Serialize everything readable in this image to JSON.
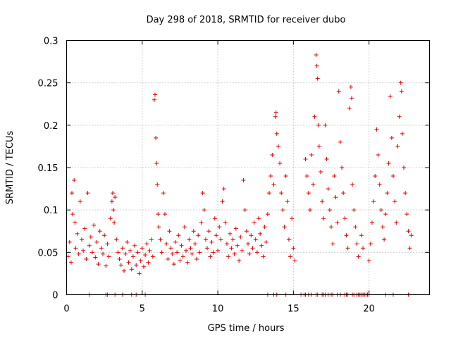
{
  "chart_data": {
    "type": "scatter",
    "title": "Day 298 of 2018, SRMTID for receiver dubo",
    "xlabel": "GPS time / hours",
    "ylabel": "SRMTID / TECUs",
    "xlim": [
      0,
      24
    ],
    "ylim": [
      0,
      0.3
    ],
    "xticks": [
      0,
      5,
      10,
      15,
      20
    ],
    "xtick_labels": [
      "0",
      "5",
      "10",
      "15",
      "20"
    ],
    "yticks": [
      0,
      0.05,
      0.1,
      0.15,
      0.2,
      0.25,
      0.3
    ],
    "ytick_labels": [
      "0",
      "0.05",
      "0.1",
      "0.15",
      "0.2",
      "0.25",
      "0.3"
    ],
    "grid": true,
    "marker": "+",
    "color": "#e00000",
    "series": [
      {
        "name": "SRMTID",
        "points": [
          [
            0.1,
            0.045
          ],
          [
            0.2,
            0.062
          ],
          [
            0.3,
            0.038
          ],
          [
            0.35,
            0.12
          ],
          [
            0.4,
            0.095
          ],
          [
            0.5,
            0.135
          ],
          [
            0.55,
            0.085
          ],
          [
            0.6,
            0.055
          ],
          [
            0.7,
            0.072
          ],
          [
            0.8,
            0.048
          ],
          [
            0.9,
            0.11
          ],
          [
            1.0,
            0.065
          ],
          [
            1.1,
            0.052
          ],
          [
            1.2,
            0.078
          ],
          [
            1.3,
            0.042
          ],
          [
            1.4,
            0.12
          ],
          [
            1.5,
            0.058
          ],
          [
            1.6,
            0.068
          ],
          [
            1.7,
            0.05
          ],
          [
            1.8,
            0.082
          ],
          [
            1.9,
            0.044
          ],
          [
            2.0,
            0.062
          ],
          [
            2.1,
            0.036
          ],
          [
            2.2,
            0.075
          ],
          [
            2.3,
            0.055
          ],
          [
            2.4,
            0.048
          ],
          [
            2.5,
            0.07
          ],
          [
            2.6,
            0.034
          ],
          [
            2.7,
            0.06
          ],
          [
            2.8,
            0.045
          ],
          [
            2.9,
            0.09
          ],
          [
            3.0,
            0.11
          ],
          [
            3.05,
            0.12
          ],
          [
            3.1,
            0.1
          ],
          [
            3.15,
            0.085
          ],
          [
            3.2,
            0.115
          ],
          [
            3.3,
            0.065
          ],
          [
            3.4,
            0.05
          ],
          [
            3.5,
            0.042
          ],
          [
            3.6,
            0.035
          ],
          [
            3.7,
            0.055
          ],
          [
            3.8,
            0.028
          ],
          [
            3.9,
            0.048
          ],
          [
            4.0,
            0.062
          ],
          [
            4.1,
            0.038
          ],
          [
            4.2,
            0.052
          ],
          [
            4.3,
            0.03
          ],
          [
            4.4,
            0.045
          ],
          [
            4.5,
            0.058
          ],
          [
            4.6,
            0.035
          ],
          [
            4.7,
            0.05
          ],
          [
            4.8,
            0.025
          ],
          [
            4.9,
            0.04
          ],
          [
            5.0,
            0.055
          ],
          [
            5.1,
            0.033
          ],
          [
            5.2,
            0.047
          ],
          [
            5.3,
            0.06
          ],
          [
            5.4,
            0.038
          ],
          [
            5.5,
            0.052
          ],
          [
            5.6,
            0.065
          ],
          [
            5.7,
            0.045
          ],
          [
            5.8,
            0.23
          ],
          [
            5.85,
            0.236
          ],
          [
            5.9,
            0.185
          ],
          [
            5.95,
            0.155
          ],
          [
            6.0,
            0.13
          ],
          [
            6.05,
            0.095
          ],
          [
            6.1,
            0.08
          ],
          [
            6.2,
            0.065
          ],
          [
            6.3,
            0.05
          ],
          [
            6.4,
            0.12
          ],
          [
            6.5,
            0.095
          ],
          [
            6.6,
            0.06
          ],
          [
            6.7,
            0.042
          ],
          [
            6.8,
            0.075
          ],
          [
            6.9,
            0.055
          ],
          [
            7.0,
            0.048
          ],
          [
            7.1,
            0.036
          ],
          [
            7.2,
            0.062
          ],
          [
            7.3,
            0.05
          ],
          [
            7.4,
            0.07
          ],
          [
            7.5,
            0.04
          ],
          [
            7.6,
            0.058
          ],
          [
            7.7,
            0.045
          ],
          [
            7.8,
            0.08
          ],
          [
            7.9,
            0.052
          ],
          [
            8.0,
            0.038
          ],
          [
            8.1,
            0.065
          ],
          [
            8.2,
            0.055
          ],
          [
            8.3,
            0.048
          ],
          [
            8.4,
            0.075
          ],
          [
            8.5,
            0.06
          ],
          [
            8.6,
            0.042
          ],
          [
            8.7,
            0.07
          ],
          [
            8.8,
            0.05
          ],
          [
            8.9,
            0.085
          ],
          [
            9.0,
            0.12
          ],
          [
            9.1,
            0.1
          ],
          [
            9.2,
            0.065
          ],
          [
            9.3,
            0.055
          ],
          [
            9.4,
            0.075
          ],
          [
            9.5,
            0.045
          ],
          [
            9.6,
            0.062
          ],
          [
            9.7,
            0.05
          ],
          [
            9.8,
            0.09
          ],
          [
            9.9,
            0.07
          ],
          [
            10.0,
            0.052
          ],
          [
            10.1,
            0.08
          ],
          [
            10.2,
            0.065
          ],
          [
            10.3,
            0.11
          ],
          [
            10.4,
            0.125
          ],
          [
            10.5,
            0.085
          ],
          [
            10.6,
            0.06
          ],
          [
            10.7,
            0.045
          ],
          [
            10.8,
            0.072
          ],
          [
            10.9,
            0.055
          ],
          [
            11.0,
            0.065
          ],
          [
            11.1,
            0.048
          ],
          [
            11.2,
            0.078
          ],
          [
            11.3,
            0.058
          ],
          [
            11.4,
            0.04
          ],
          [
            11.5,
            0.068
          ],
          [
            11.6,
            0.052
          ],
          [
            11.7,
            0.135
          ],
          [
            11.8,
            0.1
          ],
          [
            11.9,
            0.075
          ],
          [
            12.0,
            0.06
          ],
          [
            12.1,
            0.048
          ],
          [
            12.2,
            0.07
          ],
          [
            12.3,
            0.055
          ],
          [
            12.4,
            0.085
          ],
          [
            12.5,
            0.065
          ],
          [
            12.6,
            0.05
          ],
          [
            12.7,
            0.09
          ],
          [
            12.8,
            0.072
          ],
          [
            12.9,
            0.058
          ],
          [
            13.0,
            0.045
          ],
          [
            13.1,
            0.08
          ],
          [
            13.2,
            0.062
          ],
          [
            13.3,
            0.095
          ],
          [
            13.4,
            0.12
          ],
          [
            13.5,
            0.14
          ],
          [
            13.6,
            0.165
          ],
          [
            13.7,
            0.13
          ],
          [
            13.8,
            0.21
          ],
          [
            13.85,
            0.215
          ],
          [
            13.9,
            0.19
          ],
          [
            14.0,
            0.175
          ],
          [
            14.1,
            0.155
          ],
          [
            14.2,
            0.12
          ],
          [
            14.3,
            0.1
          ],
          [
            14.4,
            0.08
          ],
          [
            14.5,
            0.14
          ],
          [
            14.6,
            0.11
          ],
          [
            14.7,
            0.065
          ],
          [
            14.8,
            0.045
          ],
          [
            14.9,
            0.09
          ],
          [
            15.0,
            0.055
          ],
          [
            15.1,
            0.04
          ],
          [
            15.8,
            0.16
          ],
          [
            15.9,
            0.14
          ],
          [
            16.0,
            0.12
          ],
          [
            16.1,
            0.1
          ],
          [
            16.2,
            0.165
          ],
          [
            16.3,
            0.13
          ],
          [
            16.4,
            0.21
          ],
          [
            16.5,
            0.283
          ],
          [
            16.55,
            0.27
          ],
          [
            16.6,
            0.255
          ],
          [
            16.65,
            0.2
          ],
          [
            16.7,
            0.175
          ],
          [
            16.8,
            0.145
          ],
          [
            16.9,
            0.11
          ],
          [
            17.0,
            0.09
          ],
          [
            17.1,
            0.2
          ],
          [
            17.2,
            0.16
          ],
          [
            17.3,
            0.125
          ],
          [
            17.4,
            0.1
          ],
          [
            17.5,
            0.08
          ],
          [
            17.6,
            0.06
          ],
          [
            17.7,
            0.14
          ],
          [
            17.8,
            0.115
          ],
          [
            17.9,
            0.085
          ],
          [
            18.0,
            0.24
          ],
          [
            18.1,
            0.18
          ],
          [
            18.2,
            0.15
          ],
          [
            18.3,
            0.12
          ],
          [
            18.4,
            0.09
          ],
          [
            18.5,
            0.07
          ],
          [
            18.6,
            0.055
          ],
          [
            18.7,
            0.22
          ],
          [
            18.8,
            0.245
          ],
          [
            18.85,
            0.232
          ],
          [
            18.9,
            0.13
          ],
          [
            19.0,
            0.1
          ],
          [
            19.1,
            0.08
          ],
          [
            19.2,
            0.06
          ],
          [
            19.3,
            0.045
          ],
          [
            19.5,
            0.07
          ],
          [
            19.6,
            0.055
          ],
          [
            20.0,
            0.04
          ],
          [
            20.1,
            0.06
          ],
          [
            20.2,
            0.085
          ],
          [
            20.3,
            0.11
          ],
          [
            20.4,
            0.14
          ],
          [
            20.5,
            0.195
          ],
          [
            20.6,
            0.165
          ],
          [
            20.7,
            0.13
          ],
          [
            20.8,
            0.1
          ],
          [
            20.9,
            0.08
          ],
          [
            21.0,
            0.065
          ],
          [
            21.1,
            0.095
          ],
          [
            21.2,
            0.12
          ],
          [
            21.3,
            0.155
          ],
          [
            21.4,
            0.234
          ],
          [
            21.5,
            0.185
          ],
          [
            21.6,
            0.14
          ],
          [
            21.7,
            0.11
          ],
          [
            21.8,
            0.085
          ],
          [
            21.9,
            0.175
          ],
          [
            22.0,
            0.21
          ],
          [
            22.1,
            0.25
          ],
          [
            22.15,
            0.24
          ],
          [
            22.2,
            0.19
          ],
          [
            22.3,
            0.15
          ],
          [
            22.4,
            0.12
          ],
          [
            22.5,
            0.095
          ],
          [
            22.6,
            0.075
          ],
          [
            22.7,
            0.055
          ],
          [
            22.8,
            0.07
          ]
        ],
        "zero_points_x": [
          1.5,
          2.6,
          2.7,
          3.2,
          3.7,
          4.3,
          4.6,
          5.2,
          13.3,
          13.7,
          13.9,
          14.5,
          15.5,
          15.7,
          15.8,
          16.0,
          16.2,
          16.5,
          16.6,
          16.9,
          17.0,
          17.1,
          17.3,
          17.5,
          17.6,
          17.9,
          18.1,
          18.4,
          18.5,
          18.6,
          18.9,
          19.0,
          19.2,
          19.3,
          19.4,
          19.5,
          19.6,
          19.7,
          19.8,
          19.9,
          20.0,
          21.1,
          21.6,
          22.6
        ]
      }
    ]
  }
}
